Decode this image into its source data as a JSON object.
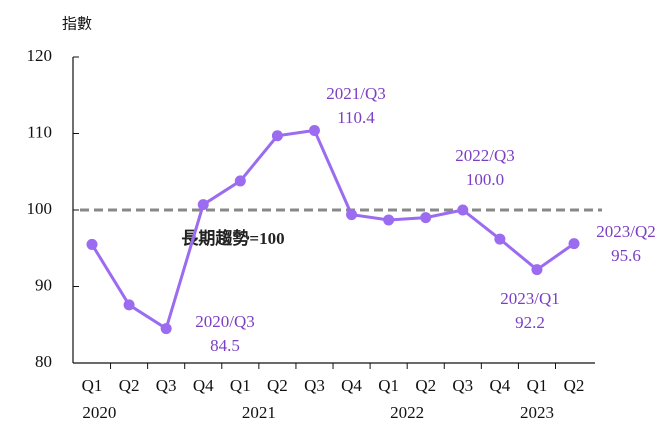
{
  "chart_data": {
    "type": "line",
    "y_label": "指數",
    "categories": [
      "Q1",
      "Q2",
      "Q3",
      "Q4",
      "Q1",
      "Q2",
      "Q3",
      "Q4",
      "Q1",
      "Q2",
      "Q3",
      "Q4",
      "Q1",
      "Q2"
    ],
    "years": [
      "2020",
      "2021",
      "2022",
      "2023"
    ],
    "series": [
      {
        "color": "#9b6bf0",
        "values": [
          95.5,
          87.6,
          84.5,
          100.7,
          103.8,
          109.7,
          110.4,
          99.4,
          98.7,
          99.0,
          100.0,
          96.2,
          92.2,
          95.6
        ],
        "value_labels": [
          null,
          null,
          "84.5",
          null,
          null,
          null,
          "110.4",
          null,
          null,
          null,
          "100.0",
          null,
          "92.2",
          "95.6"
        ],
        "point_labels": [
          null,
          null,
          "2020/Q3",
          null,
          null,
          null,
          "2021/Q3",
          null,
          null,
          null,
          "2022/Q3",
          null,
          "2023/Q1",
          "2023/Q2"
        ]
      }
    ],
    "reference_line": {
      "value": 100,
      "label": "長期趨勢=100",
      "color": "#888888"
    },
    "ylim": [
      80,
      120
    ],
    "yticks": [
      80,
      90,
      100,
      110,
      120
    ]
  }
}
